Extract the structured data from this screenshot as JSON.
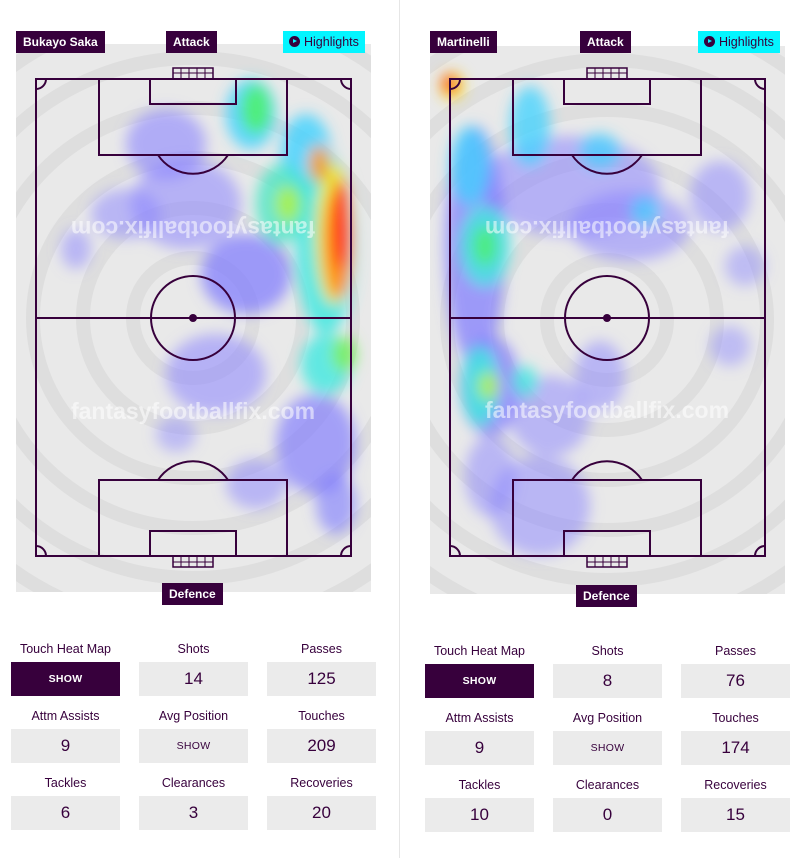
{
  "players": [
    {
      "name": "Bukayo Saka",
      "attack_label": "Attack",
      "defence_label": "Defence",
      "highlights_label": "Highlights",
      "watermark": "fantasyfootballfix.com",
      "stats": {
        "touch_heat_map": {
          "label": "Touch Heat Map",
          "value": "SHOW"
        },
        "shots": {
          "label": "Shots",
          "value": "14"
        },
        "passes": {
          "label": "Passes",
          "value": "125"
        },
        "attm_assists": {
          "label": "Attm Assists",
          "value": "9"
        },
        "avg_position": {
          "label": "Avg Position",
          "value": "SHOW"
        },
        "touches": {
          "label": "Touches",
          "value": "209"
        },
        "tackles": {
          "label": "Tackles",
          "value": "6"
        },
        "clearances": {
          "label": "Clearances",
          "value": "3"
        },
        "recoveries": {
          "label": "Recoveries",
          "value": "20"
        }
      }
    },
    {
      "name": "Martinelli",
      "attack_label": "Attack",
      "defence_label": "Defence",
      "highlights_label": "Highlights",
      "watermark": "fantasyfootballfix.com",
      "stats": {
        "touch_heat_map": {
          "label": "Touch Heat Map",
          "value": "SHOW"
        },
        "shots": {
          "label": "Shots",
          "value": "8"
        },
        "passes": {
          "label": "Passes",
          "value": "76"
        },
        "attm_assists": {
          "label": "Attm Assists",
          "value": "9"
        },
        "avg_position": {
          "label": "Avg Position",
          "value": "SHOW"
        },
        "touches": {
          "label": "Touches",
          "value": "174"
        },
        "tackles": {
          "label": "Tackles",
          "value": "10"
        },
        "clearances": {
          "label": "Clearances",
          "value": "0"
        },
        "recoveries": {
          "label": "Recoveries",
          "value": "15"
        }
      }
    }
  ],
  "colors": {
    "primary": "#37003c",
    "highlight": "#04f5ff",
    "pitch_bg": "#e9e9e9",
    "stat_bg": "#ebebeb"
  }
}
